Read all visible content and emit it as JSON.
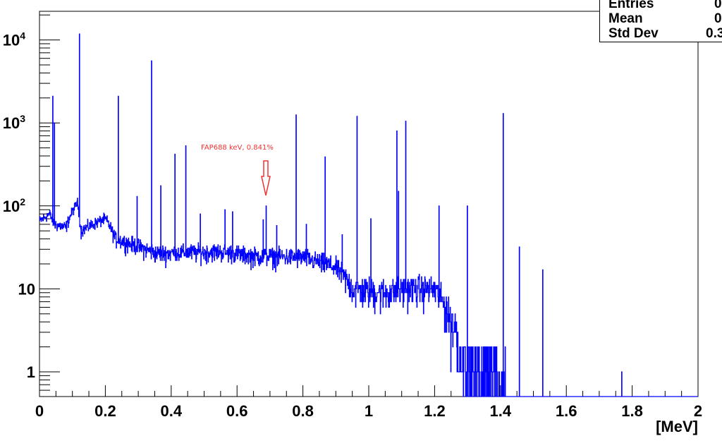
{
  "chart_data": {
    "type": "histogram",
    "title": "",
    "xlabel": "[MeV]",
    "ylabel": "",
    "xlim": [
      0,
      2
    ],
    "ylim": [
      0.5,
      22000
    ],
    "yscale": "log",
    "x_ticks": [
      "0",
      "0.2",
      "0.4",
      "0.6",
      "0.8",
      "1",
      "1.2",
      "1.4",
      "1.6",
      "1.8",
      "2"
    ],
    "y_ticks": [
      "1",
      "10",
      "10^2",
      "10^3",
      "10^4"
    ],
    "line_color": "#0000ff",
    "continuum": [
      {
        "E": 0.0,
        "count": 65
      },
      {
        "E": 0.03,
        "count": 80
      },
      {
        "E": 0.045,
        "count": 60
      },
      {
        "E": 0.08,
        "count": 55
      },
      {
        "E": 0.115,
        "count": 110
      },
      {
        "E": 0.125,
        "count": 50
      },
      {
        "E": 0.2,
        "count": 70
      },
      {
        "E": 0.23,
        "count": 40
      },
      {
        "E": 0.35,
        "count": 27
      },
      {
        "E": 0.55,
        "count": 28
      },
      {
        "E": 0.65,
        "count": 25
      },
      {
        "E": 0.8,
        "count": 24
      },
      {
        "E": 0.9,
        "count": 18
      },
      {
        "E": 0.95,
        "count": 10
      },
      {
        "E": 1.05,
        "count": 9
      },
      {
        "E": 1.12,
        "count": 10
      },
      {
        "E": 1.2,
        "count": 10
      },
      {
        "E": 1.25,
        "count": 4
      },
      {
        "E": 1.3,
        "count": 1.5
      },
      {
        "E": 1.41,
        "count": 0.8
      },
      {
        "E": 1.42,
        "count": 0
      }
    ],
    "peaks": [
      {
        "E": 0.04,
        "count": 2100
      },
      {
        "E": 0.045,
        "count": 1000
      },
      {
        "E": 0.121,
        "count": 11800
      },
      {
        "E": 0.239,
        "count": 2100
      },
      {
        "E": 0.296,
        "count": 130
      },
      {
        "E": 0.34,
        "count": 5600
      },
      {
        "E": 0.368,
        "count": 175
      },
      {
        "E": 0.411,
        "count": 420
      },
      {
        "E": 0.444,
        "count": 530
      },
      {
        "E": 0.488,
        "count": 80
      },
      {
        "E": 0.563,
        "count": 90
      },
      {
        "E": 0.586,
        "count": 85
      },
      {
        "E": 0.679,
        "count": 68
      },
      {
        "E": 0.688,
        "count": 100
      },
      {
        "E": 0.72,
        "count": 58
      },
      {
        "E": 0.779,
        "count": 1250
      },
      {
        "E": 0.81,
        "count": 60
      },
      {
        "E": 0.867,
        "count": 390
      },
      {
        "E": 0.919,
        "count": 45
      },
      {
        "E": 0.964,
        "count": 1200
      },
      {
        "E": 1.006,
        "count": 70
      },
      {
        "E": 1.085,
        "count": 800
      },
      {
        "E": 1.09,
        "count": 150
      },
      {
        "E": 1.112,
        "count": 1050
      },
      {
        "E": 1.213,
        "count": 100
      },
      {
        "E": 1.299,
        "count": 100
      },
      {
        "E": 1.408,
        "count": 1300
      },
      {
        "E": 1.457,
        "count": 32
      },
      {
        "E": 1.528,
        "count": 17
      },
      {
        "E": 1.768,
        "count": 1
      }
    ],
    "annotations": [
      {
        "text": "FAP688 keV, 0.841%",
        "E": 0.688,
        "color": "#ee3333",
        "type": "arrow-down"
      }
    ],
    "stats_box": {
      "rows": [
        "Entries",
        "Mean",
        "Std Dev"
      ],
      "values_visible": [
        "0",
        "0",
        "0.3"
      ]
    }
  },
  "axis": {
    "x_unit_label": "[MeV]"
  },
  "stats": {
    "entries_label": "Entries",
    "mean_label": "Mean",
    "stddev_label": "Std Dev",
    "entries_value": "0",
    "mean_value": "0",
    "stddev_value": "0.3"
  },
  "annotation": {
    "text": "FAP688 keV, 0.841%"
  }
}
